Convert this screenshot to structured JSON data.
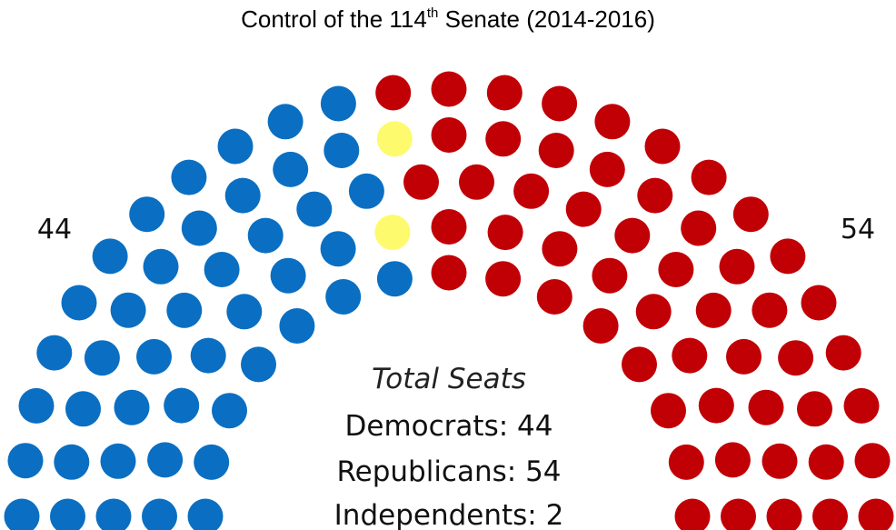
{
  "title": {
    "prefix": "Control of the 114",
    "superscript": "th",
    "suffix": " Senate (2014-2016)"
  },
  "chart_data": {
    "type": "parliament",
    "total": 100,
    "series": [
      {
        "name": "Democrats",
        "value": 44,
        "color": "#0a6fc2"
      },
      {
        "name": "Independents",
        "value": 2,
        "color": "#fefa6e"
      },
      {
        "name": "Republicans",
        "value": 54,
        "color": "#c10006"
      }
    ],
    "left_count": "44",
    "right_count": "54",
    "totals": {
      "heading": "Total Seats",
      "democrats": "Democrats: 44",
      "republicans": "Republicans: 54",
      "independents": "Independents: 2"
    }
  }
}
